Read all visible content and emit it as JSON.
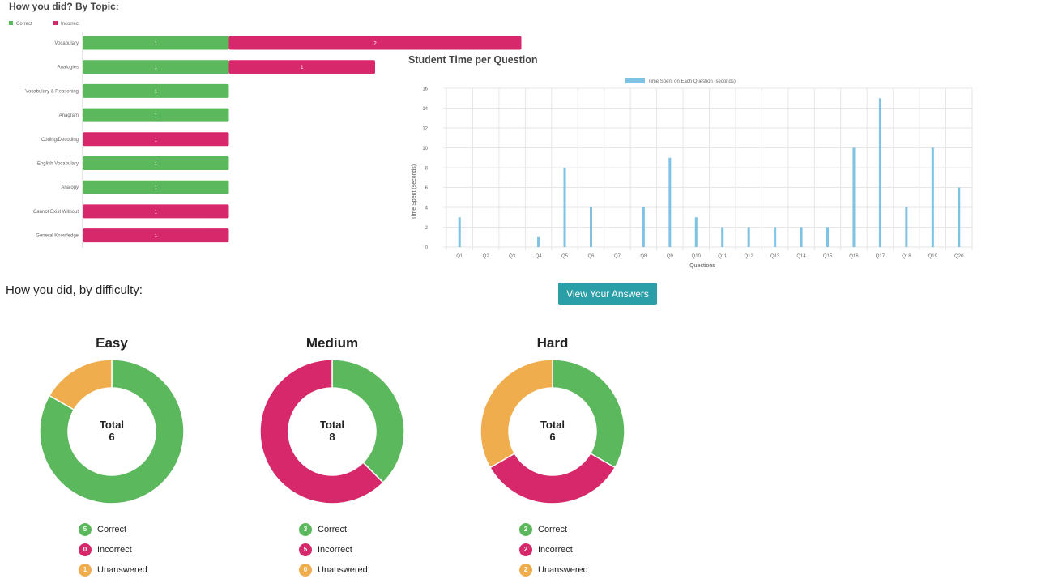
{
  "topic_section": {
    "title": "How you did? By Topic:"
  },
  "difficulty_section": {
    "title": "How you did, by difficulty:"
  },
  "view_answers_button": {
    "label": "View Your Answers"
  },
  "colors": {
    "correct": "#5cb85c",
    "incorrect": "#d6286a",
    "unanswered": "#f0ad4e",
    "time_bar": "#7fc2e3",
    "button": "#2a9fa8"
  },
  "chart_data": [
    {
      "type": "bar",
      "orientation": "horizontal",
      "stacked": true,
      "title": "",
      "categories": [
        "Vocabulary",
        "Analogies",
        "Vocabulary & Reasoning",
        "Anagram",
        "Coding/Decoding",
        "English Vocabulary",
        "Analogy",
        "Cannot Exist Without",
        "General Knowledge"
      ],
      "series": [
        {
          "name": "Correct",
          "values": [
            1,
            1,
            1,
            1,
            0,
            1,
            1,
            0,
            0
          ]
        },
        {
          "name": "Incorrect",
          "values": [
            2,
            1,
            0,
            0,
            1,
            0,
            0,
            1,
            1
          ]
        }
      ],
      "legend": [
        "Correct",
        "Incorrect"
      ],
      "legend_position": "top-left",
      "xlim": [
        0,
        3
      ]
    },
    {
      "type": "bar",
      "title": "Student Time per Question",
      "categories": [
        "Q1",
        "Q2",
        "Q3",
        "Q4",
        "Q5",
        "Q6",
        "Q7",
        "Q8",
        "Q9",
        "Q10",
        "Q11",
        "Q12",
        "Q13",
        "Q14",
        "Q15",
        "Q16",
        "Q17",
        "Q18",
        "Q19",
        "Q20"
      ],
      "series": [
        {
          "name": "Time Spent on Each Question (seconds)",
          "values": [
            3,
            0,
            0,
            1,
            8,
            4,
            0,
            4,
            9,
            3,
            2,
            2,
            2,
            2,
            2,
            10,
            15,
            4,
            10,
            6
          ]
        }
      ],
      "xlabel": "Questions",
      "ylabel": "Time Spent (seconds)",
      "ylim": [
        0,
        16
      ],
      "yticks": [
        "0",
        "2",
        "4",
        "6",
        "8",
        "10",
        "12",
        "14",
        "16"
      ],
      "grid": true,
      "legend_position": "top"
    },
    {
      "type": "pie",
      "title": "Easy",
      "center_label": "Total",
      "total": "6",
      "labels": [
        "Correct",
        "Incorrect",
        "Unanswered"
      ],
      "values": [
        5,
        0,
        1
      ]
    },
    {
      "type": "pie",
      "title": "Medium",
      "center_label": "Total",
      "total": "8",
      "labels": [
        "Correct",
        "Incorrect",
        "Unanswered"
      ],
      "values": [
        3,
        5,
        0
      ]
    },
    {
      "type": "pie",
      "title": "Hard",
      "center_label": "Total",
      "total": "6",
      "labels": [
        "Correct",
        "Incorrect",
        "Unanswered"
      ],
      "values": [
        2,
        2,
        2
      ]
    }
  ]
}
